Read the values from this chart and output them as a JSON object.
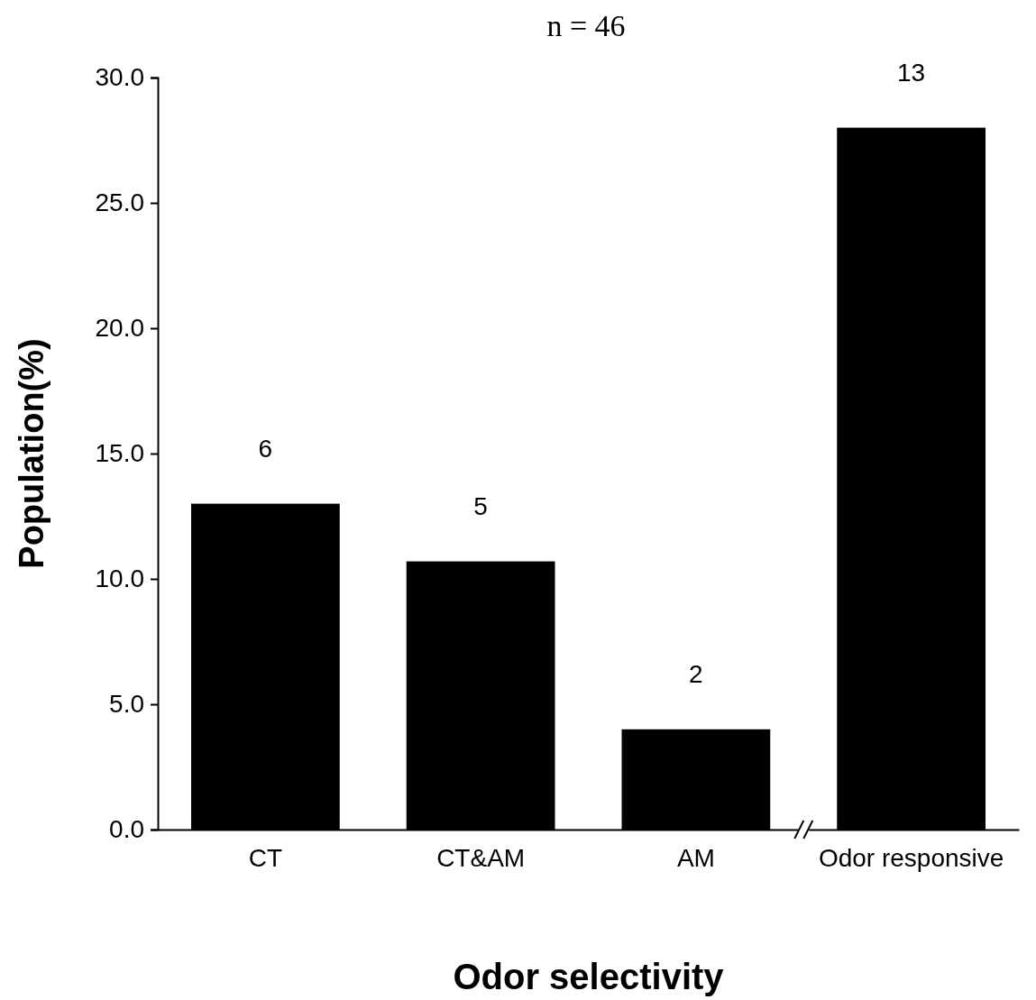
{
  "chart_data": {
    "type": "bar",
    "title": "n = 46",
    "xlabel": "Odor selectivity",
    "ylabel": "Population(%)",
    "categories": [
      "CT",
      "CT&AM",
      "AM",
      "Odor responsive"
    ],
    "values": [
      13.0,
      10.7,
      4.0,
      28.0
    ],
    "color": "#000000",
    "annotations": [
      {
        "text": "6",
        "x": "CT",
        "y": 13.0
      },
      {
        "text": "5",
        "x": "CT&AM",
        "y": 10.7
      },
      {
        "text": "2",
        "x": "AM",
        "y": 4.0
      },
      {
        "text": "13",
        "x": "Odor responsive",
        "y": 28.0
      }
    ],
    "ylim": [
      0,
      30
    ],
    "yticks": [
      {
        "value": 0,
        "label": "0.0"
      },
      {
        "value": 5,
        "label": "5.0"
      },
      {
        "value": 10,
        "label": "10.0"
      },
      {
        "value": 15,
        "label": "15.0"
      },
      {
        "value": 20,
        "label": "20.0"
      },
      {
        "value": 25,
        "label": "25.0"
      },
      {
        "value": 30,
        "label": "30.0"
      }
    ],
    "grid": false
  }
}
